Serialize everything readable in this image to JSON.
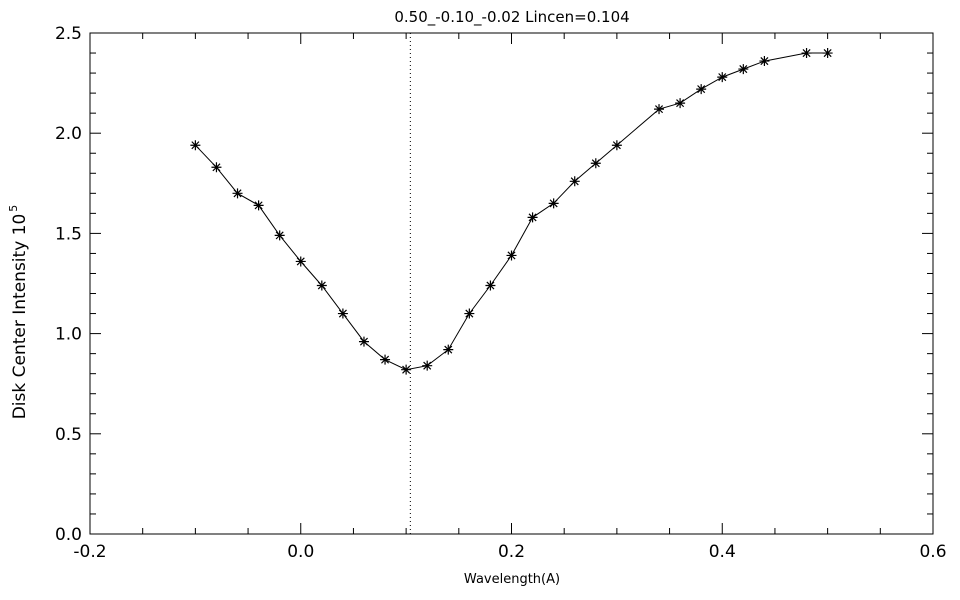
{
  "chart_data": {
    "type": "line",
    "title": "0.50_-0.10_-0.02   Lincen=0.104",
    "xlabel": "Wavelength(A)",
    "ylabel": "Disk Center Intensity 10",
    "ylabel_exponent": "5",
    "xlim": [
      -0.2,
      0.6
    ],
    "ylim": [
      0.0,
      2.5
    ],
    "x_ticks": [
      -0.2,
      0.0,
      0.2,
      0.4,
      0.6
    ],
    "x_tick_labels": [
      "-0.2",
      "0.0",
      "0.2",
      "0.4",
      "0.6"
    ],
    "y_ticks": [
      0.0,
      0.5,
      1.0,
      1.5,
      2.0,
      2.5
    ],
    "y_tick_labels": [
      "0.0",
      "0.5",
      "1.0",
      "1.5",
      "2.0",
      "2.5"
    ],
    "grid": false,
    "marker": "asterisk",
    "line_center": 0.104,
    "series": [
      {
        "x": [
          -0.1,
          -0.08,
          -0.06,
          -0.04,
          -0.02,
          0.0,
          0.02,
          0.04,
          0.06,
          0.08,
          0.1,
          0.12,
          0.14,
          0.16,
          0.18,
          0.2,
          0.22,
          0.24,
          0.26,
          0.28,
          0.3,
          0.34,
          0.36,
          0.38,
          0.4,
          0.42,
          0.44,
          0.48,
          0.5
        ],
        "y": [
          1.94,
          1.83,
          1.7,
          1.64,
          1.49,
          1.36,
          1.24,
          1.1,
          0.96,
          0.87,
          0.82,
          0.84,
          0.92,
          1.1,
          1.24,
          1.39,
          1.58,
          1.65,
          1.76,
          1.85,
          1.94,
          2.12,
          2.15,
          2.22,
          2.28,
          2.32,
          2.36,
          2.4,
          2.4
        ]
      }
    ]
  }
}
